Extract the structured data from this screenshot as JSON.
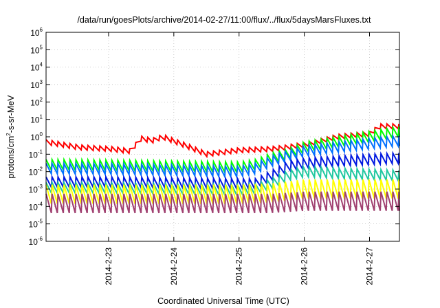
{
  "chart_data": {
    "type": "line",
    "title": "/data/run/goesPlots/archive/2014-02-27/11:00/flux/../flux/5daysMarsFluxes.txt",
    "xlabel": "Coordinated Universal Time (UTC)",
    "ylabel": {
      "base": "protons/cm",
      "sup": "2",
      "rest": "-s-sr-MeV"
    },
    "yscale": "log",
    "ylim": [
      1e-06,
      1000000.0
    ],
    "xlim": [
      "2014-02-22 01:00",
      "2014-02-27 11:00"
    ],
    "x_ticks": [
      "2014-2-23",
      "2014-2-24",
      "2014-2-25",
      "2014-2-26",
      "2014-2-27"
    ],
    "y_ticks": [
      {
        "base": "10",
        "exp": "-6"
      },
      {
        "base": "10",
        "exp": "-5"
      },
      {
        "base": "10",
        "exp": "-4"
      },
      {
        "base": "10",
        "exp": "-3"
      },
      {
        "base": "10",
        "exp": "-2"
      },
      {
        "base": "10",
        "exp": "-1"
      },
      {
        "base": "10",
        "exp": "0"
      },
      {
        "base": "10",
        "exp": "1"
      },
      {
        "base": "10",
        "exp": "2"
      },
      {
        "base": "10",
        "exp": "3"
      },
      {
        "base": "10",
        "exp": "4"
      },
      {
        "base": "10",
        "exp": "5"
      },
      {
        "base": "10",
        "exp": "6"
      }
    ],
    "grid": true,
    "series": [
      {
        "color": "#ff0000",
        "x": [
          "2014-02-22 01:00",
          "2014-02-22 13:00",
          "2014-02-23 01:00",
          "2014-02-23 08:00",
          "2014-02-23 12:00",
          "2014-02-23 16:00",
          "2014-02-23 20:00",
          "2014-02-24 06:00",
          "2014-02-24 12:00",
          "2014-02-25 00:00",
          "2014-02-25 12:00",
          "2014-02-25 18:00",
          "2014-02-26 02:00",
          "2014-02-26 12:00",
          "2014-02-27 00:00",
          "2014-02-27 04:00",
          "2014-02-27 11:00"
        ],
        "y": [
          0.5,
          0.25,
          0.2,
          0.15,
          0.8,
          0.6,
          1.0,
          0.25,
          0.1,
          0.17,
          0.2,
          0.25,
          0.4,
          1.0,
          1.5,
          4.0,
          4.0
        ]
      },
      {
        "color": "#00ff00",
        "x": [
          "2014-02-22 01:00",
          "2014-02-23 00:00",
          "2014-02-24 00:00",
          "2014-02-25 00:00",
          "2014-02-25 06:00",
          "2014-02-25 12:00",
          "2014-02-25 18:00",
          "2014-02-26 00:00",
          "2014-02-26 12:00",
          "2014-02-27 00:00",
          "2014-02-27 11:00"
        ],
        "y": [
          0.025,
          0.023,
          0.02,
          0.018,
          0.025,
          0.06,
          0.1,
          0.25,
          0.5,
          1.0,
          2.0
        ]
      },
      {
        "color": "#0070ff",
        "x": [
          "2014-02-22 01:00",
          "2014-02-23 00:00",
          "2014-02-24 00:00",
          "2014-02-25 00:00",
          "2014-02-25 06:00",
          "2014-02-25 12:00",
          "2014-02-25 18:00",
          "2014-02-26 00:00",
          "2014-02-26 12:00",
          "2014-02-27 00:00",
          "2014-02-27 11:00"
        ],
        "y": [
          0.015,
          0.014,
          0.012,
          0.01,
          0.015,
          0.04,
          0.08,
          0.15,
          0.25,
          0.4,
          0.6
        ]
      },
      {
        "color": "#0018e0",
        "x": [
          "2014-02-22 01:00",
          "2014-02-23 00:00",
          "2014-02-24 00:00",
          "2014-02-25 00:00",
          "2014-02-25 06:00",
          "2014-02-25 12:00",
          "2014-02-25 18:00",
          "2014-02-26 00:00",
          "2014-02-26 12:00",
          "2014-02-27 00:00",
          "2014-02-27 11:00"
        ],
        "y": [
          0.0025,
          0.0025,
          0.0022,
          0.002,
          0.002,
          0.006,
          0.02,
          0.03,
          0.04,
          0.05,
          0.06
        ]
      },
      {
        "color": "#20c8a0",
        "x": [
          "2014-02-22 01:00",
          "2014-02-23 00:00",
          "2014-02-24 00:00",
          "2014-02-25 00:00",
          "2014-02-25 06:00",
          "2014-02-25 12:00",
          "2014-02-25 18:00",
          "2014-02-26 00:00",
          "2014-02-26 12:00",
          "2014-02-27 00:00",
          "2014-02-27 11:00"
        ],
        "y": [
          0.0012,
          0.0011,
          0.001,
          0.0009,
          0.001,
          0.002,
          0.006,
          0.01,
          0.008,
          0.007,
          0.006
        ]
      },
      {
        "color": "#ffff00",
        "x": [
          "2014-02-22 01:00",
          "2014-02-23 00:00",
          "2014-02-24 00:00",
          "2014-02-25 00:00",
          "2014-02-25 12:00",
          "2014-02-26 00:00",
          "2014-02-26 12:00",
          "2014-02-27 00:00",
          "2014-02-27 11:00"
        ],
        "y": [
          0.0005,
          0.0005,
          0.0005,
          0.0005,
          0.0006,
          0.001,
          0.001,
          0.001,
          0.001
        ]
      },
      {
        "color": "#a04070",
        "x": [
          "2014-02-22 01:00",
          "2014-02-23 00:00",
          "2014-02-24 00:00",
          "2014-02-25 00:00",
          "2014-02-25 12:00",
          "2014-02-26 00:00",
          "2014-02-26 12:00",
          "2014-02-27 00:00",
          "2014-02-27 11:00"
        ],
        "y": [
          0.00015,
          0.00015,
          0.00015,
          0.00015,
          0.00015,
          0.0002,
          0.0002,
          0.0002,
          0.0002
        ]
      }
    ]
  }
}
